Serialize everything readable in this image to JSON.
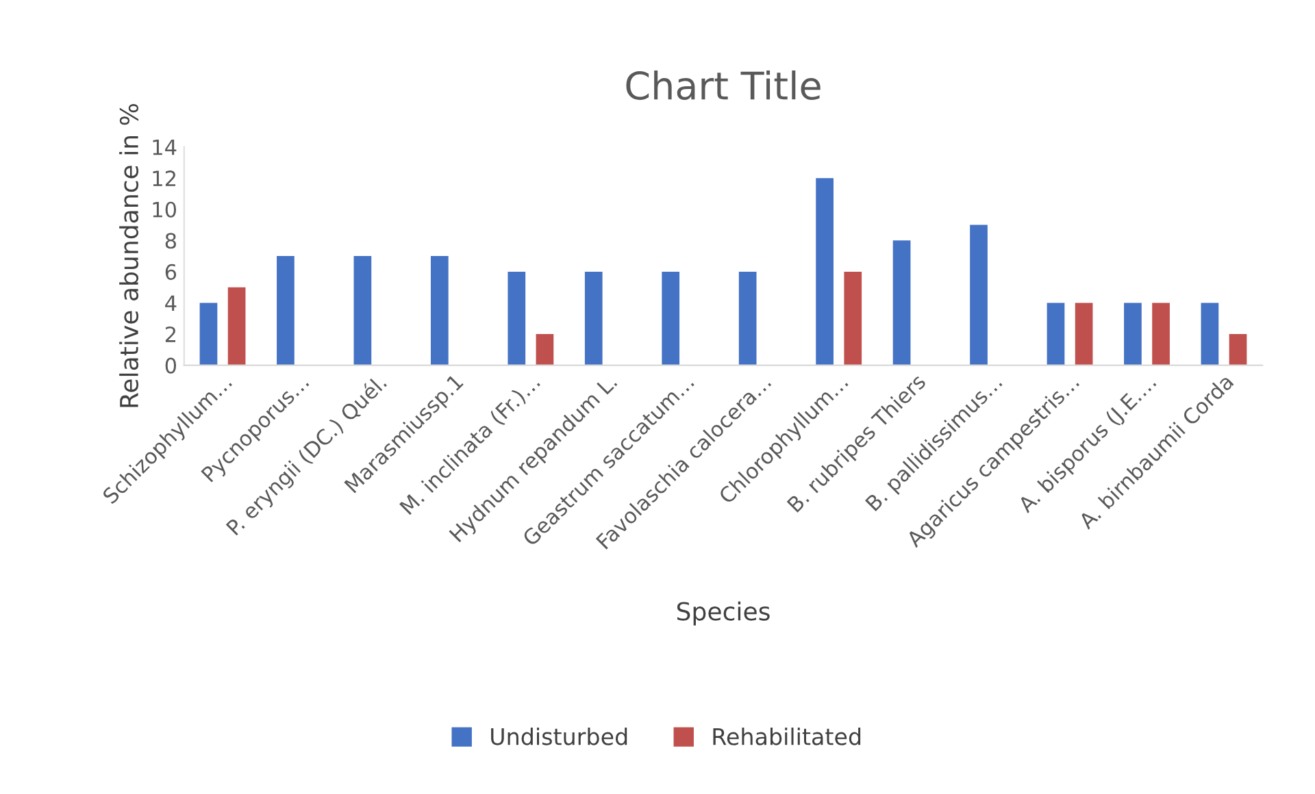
{
  "chart_data": {
    "type": "bar",
    "title": "Chart Title",
    "xlabel": "Species",
    "ylabel": "Relative abundance in %",
    "categories": [
      "Schizophyllum…",
      "Pycnoporus…",
      "P. eryngii (DC.) Quél.",
      "Marasmiussp.1",
      "M. inclinata (Fr.)…",
      "Hydnum repandum L.",
      "Geastrum saccatum…",
      "Favolaschia calocera…",
      "Chlorophyllum…",
      "B. rubripes Thiers",
      "B. pallidissimus…",
      "Agaricus campestris…",
      "A. bisporus (J.E.…",
      "A. birnbaumii Corda"
    ],
    "series": [
      {
        "name": "Undisturbed",
        "color": "#4472c4",
        "values": [
          4,
          7,
          7,
          7,
          6,
          6,
          6,
          6,
          12,
          8,
          9,
          4,
          4,
          4
        ]
      },
      {
        "name": "Rehabilitated",
        "color": "#c0504d",
        "values": [
          5,
          0,
          0,
          0,
          2,
          0,
          0,
          0,
          6,
          0,
          0,
          4,
          4,
          2
        ]
      }
    ],
    "ylim": [
      0,
      14
    ],
    "yticks": [
      0,
      2,
      4,
      6,
      8,
      10,
      12,
      14
    ],
    "grid": false,
    "legend": "bottom"
  }
}
